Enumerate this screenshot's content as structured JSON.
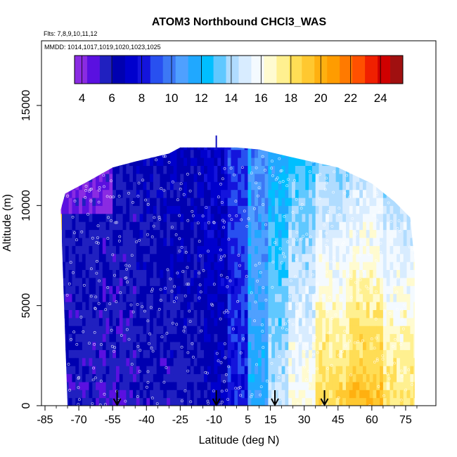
{
  "chart_data": {
    "type": "heatmap",
    "title": "ATOM3 Northbound CHCl3_WAS",
    "subtitle_flights": "Flts: 7,8,9,10,11,12",
    "subtitle_dates": "MMDD: 1014,1017,1019,1020,1023,1025",
    "xlabel": "Latitude (deg N)",
    "ylabel": "Altitude (m)",
    "xlim": [
      -85,
      85
    ],
    "ylim": [
      0,
      17500
    ],
    "x_ticks": [
      -85,
      -70,
      -55,
      -40,
      -25,
      -10,
      5,
      15,
      30,
      45,
      60,
      75
    ],
    "x_tick_labels": [
      "-85",
      "-70",
      "-55",
      "-40",
      "-25",
      "-10",
      "5",
      "15",
      "30",
      "45",
      "60",
      "75"
    ],
    "y_ticks": [
      0,
      5000,
      10000,
      15000
    ],
    "y_tick_labels": [
      "0",
      "5000",
      "10000",
      "15000"
    ],
    "colorbar": {
      "min": 3.5,
      "max": 25.5,
      "ticks": [
        4,
        6,
        8,
        10,
        12,
        14,
        16,
        18,
        20,
        22,
        24
      ],
      "tick_labels": [
        "4",
        "6",
        "8",
        "10",
        "12",
        "14",
        "16",
        "18",
        "20",
        "22",
        "24"
      ],
      "colors": [
        "#8a2be2",
        "#5a10e0",
        "#2020c0",
        "#0000b0",
        "#0000cd",
        "#1414dc",
        "#2850f0",
        "#3c78f5",
        "#4fa0ff",
        "#20a8ff",
        "#00bfff",
        "#60c8ff",
        "#b0dcff",
        "#d8ecff",
        "#f4faff",
        "#fffbd0",
        "#fff090",
        "#ffdd55",
        "#ffc830",
        "#ffb010",
        "#ff9c00",
        "#ff7a00",
        "#ff5000",
        "#f02000",
        "#d00000",
        "#a01010"
      ]
    },
    "surface_blocks": [
      {
        "lat_min": -78,
        "lat_max": -63,
        "value": 6.0
      },
      {
        "lat_min": -63,
        "lat_max": -45,
        "value": 5.8
      },
      {
        "lat_min": -45,
        "lat_max": -30,
        "value": 6.2
      },
      {
        "lat_min": -30,
        "lat_max": -15,
        "value": 6.4
      },
      {
        "lat_min": -15,
        "lat_max": -5,
        "value": 7.0
      },
      {
        "lat_min": -5,
        "lat_max": 5,
        "value": 8.5
      },
      {
        "lat_min": 5,
        "lat_max": 13,
        "value": 11.5
      },
      {
        "lat_min": 13,
        "lat_max": 22,
        "value": 14.5
      },
      {
        "lat_min": 22,
        "lat_max": 35,
        "value": 16.5
      },
      {
        "lat_min": 35,
        "lat_max": 50,
        "value": 18.5
      },
      {
        "lat_min": 50,
        "lat_max": 65,
        "value": 19.5
      },
      {
        "lat_min": 65,
        "lat_max": 79,
        "value": 18.0
      }
    ],
    "upper_boundary": [
      {
        "lat": -78,
        "alt": 9800
      },
      {
        "lat": -76,
        "alt": 10600
      },
      {
        "lat": -66,
        "alt": 11200
      },
      {
        "lat": -55,
        "alt": 11900
      },
      {
        "lat": -45,
        "alt": 12200
      },
      {
        "lat": -30,
        "alt": 12600
      },
      {
        "lat": -25,
        "alt": 12900
      },
      {
        "lat": 0,
        "alt": 12900
      },
      {
        "lat": 10,
        "alt": 12800
      },
      {
        "lat": 25,
        "alt": 12400
      },
      {
        "lat": 45,
        "alt": 11900
      },
      {
        "lat": 60,
        "alt": 11100
      },
      {
        "lat": 70,
        "alt": 10200
      },
      {
        "lat": 77,
        "alt": 9400
      },
      {
        "lat": 79,
        "alt": 7200
      }
    ],
    "lower_left_edge": [
      {
        "lat": -78,
        "alt": 9800
      },
      {
        "lat": -75,
        "alt": 0
      }
    ],
    "flight_arrows_lat": [
      -53,
      -9,
      17,
      39
    ]
  }
}
